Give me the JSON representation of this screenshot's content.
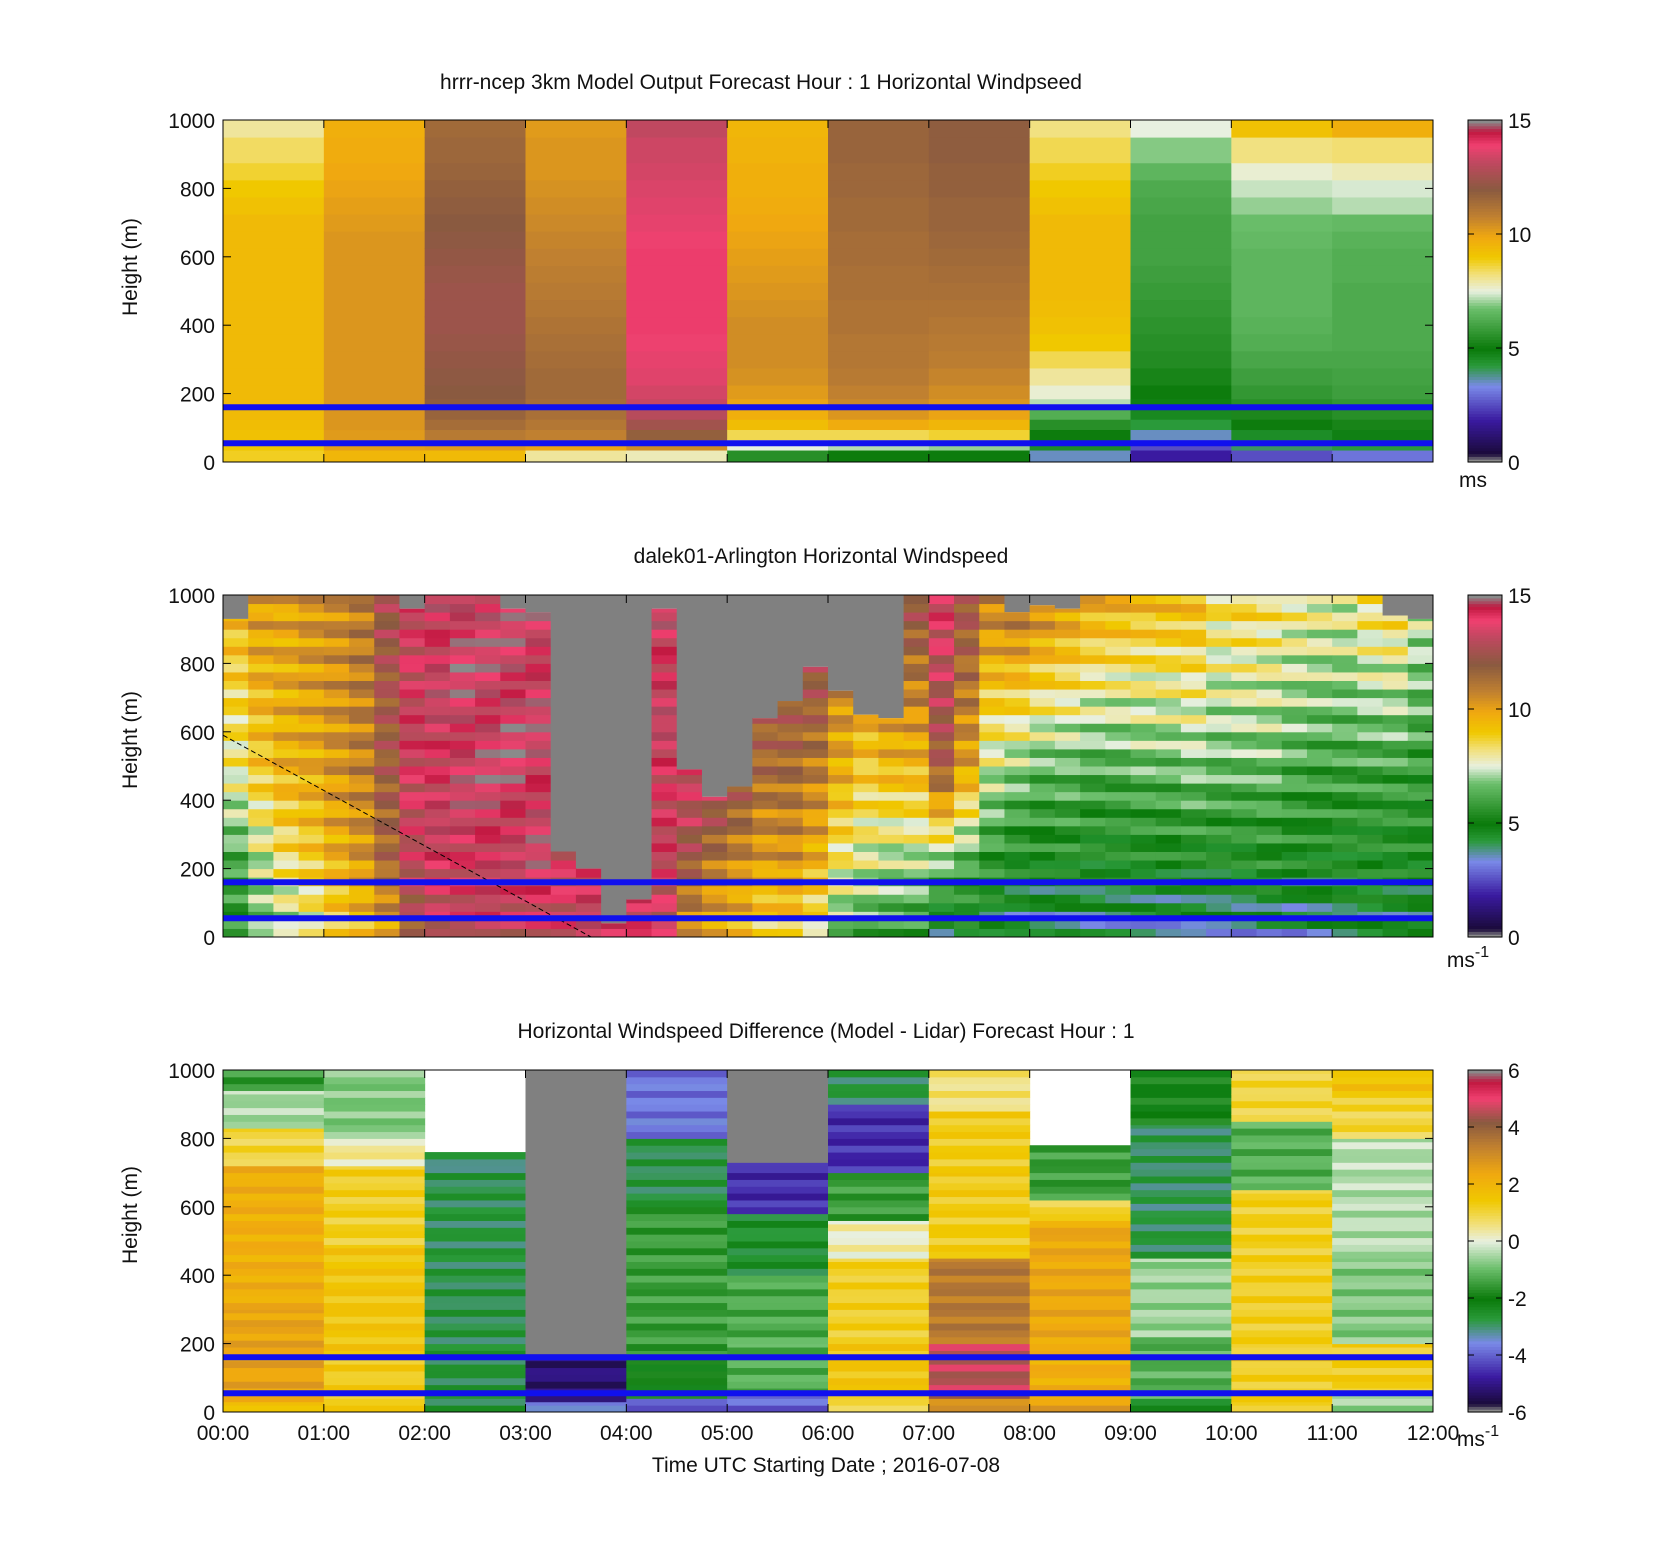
{
  "figure": {
    "xlabel": "Time UTC  Starting Date ; 2016-07-08",
    "xticks": [
      "00:00",
      "01:00",
      "02:00",
      "03:00",
      "04:00",
      "05:00",
      "06:00",
      "07:00",
      "08:00",
      "09:00",
      "10:00",
      "11:00",
      "12:00"
    ]
  },
  "colors": {
    "reference_line": "#1010ee",
    "missing": "#808080",
    "speed_scale": [
      [
        0.0,
        "#8a8a8a"
      ],
      [
        0.02,
        "#1a0a3a"
      ],
      [
        0.12,
        "#3a1aa0"
      ],
      [
        0.22,
        "#7a8ae8"
      ],
      [
        0.28,
        "#2a9a3a"
      ],
      [
        0.33,
        "#0a7a0a"
      ],
      [
        0.45,
        "#6cbf6c"
      ],
      [
        0.5,
        "#e8f0e0"
      ],
      [
        0.55,
        "#f2e07a"
      ],
      [
        0.6,
        "#f0c800"
      ],
      [
        0.66,
        "#f0a810"
      ],
      [
        0.72,
        "#c08030"
      ],
      [
        0.8,
        "#8a5a40"
      ],
      [
        0.88,
        "#c04860"
      ],
      [
        0.93,
        "#f04070"
      ],
      [
        0.97,
        "#c01840"
      ],
      [
        1.0,
        "#8a8a8a"
      ]
    ],
    "diff_scale": [
      [
        0.0,
        "#8a8a8a"
      ],
      [
        0.02,
        "#1a0a3a"
      ],
      [
        0.1,
        "#3a1aa0"
      ],
      [
        0.2,
        "#7a8ae8"
      ],
      [
        0.27,
        "#2a9a3a"
      ],
      [
        0.33,
        "#0a7a0a"
      ],
      [
        0.42,
        "#6cbf6c"
      ],
      [
        0.5,
        "#e8f0e0"
      ],
      [
        0.55,
        "#f2e07a"
      ],
      [
        0.62,
        "#f0c800"
      ],
      [
        0.7,
        "#f0a810"
      ],
      [
        0.78,
        "#c08030"
      ],
      [
        0.85,
        "#8a5a40"
      ],
      [
        0.92,
        "#f04070"
      ],
      [
        0.97,
        "#c01840"
      ],
      [
        1.0,
        "#8a8a8a"
      ]
    ]
  },
  "chart_data": [
    {
      "type": "heatmap",
      "title": "hrrr-ncep 3km Model Output   Forecast Hour : 1 Horizontal Windpseed",
      "xlabel": "",
      "ylabel": "Height (m)",
      "xlim": [
        0,
        12
      ],
      "ylim": [
        0,
        1000
      ],
      "yticks": [
        0,
        200,
        400,
        600,
        800,
        1000
      ],
      "colorbar": {
        "ticks": [
          0,
          5,
          10,
          15
        ],
        "unit": "ms",
        "range": [
          0,
          15
        ]
      },
      "reference_lines_m": [
        160,
        55
      ],
      "time_hours": [
        0,
        1,
        2,
        3,
        4,
        5,
        6,
        7,
        8,
        9,
        10,
        11
      ],
      "height_levels_m": [
        20,
        50,
        80,
        110,
        140,
        170,
        200,
        250,
        300,
        350,
        400,
        450,
        500,
        550,
        600,
        650,
        700,
        750,
        800,
        850,
        900,
        1000
      ],
      "windspeed_ms": [
        [
          8.8,
          9.0,
          9.2,
          9.3,
          9.4,
          9.4,
          9.4,
          9.4,
          9.4,
          9.4,
          9.4,
          9.4,
          9.4,
          9.4,
          9.4,
          9.4,
          9.4,
          9.2,
          9.0,
          8.7,
          8.4,
          8.0
        ],
        [
          9.5,
          10.1,
          10.2,
          10.3,
          10.3,
          10.3,
          10.3,
          10.3,
          10.3,
          10.3,
          10.3,
          10.3,
          10.3,
          10.3,
          10.3,
          10.3,
          10.2,
          10.1,
          10.0,
          9.9,
          9.8,
          9.7
        ],
        [
          9.4,
          10.2,
          11.0,
          11.4,
          11.7,
          11.9,
          12.0,
          12.1,
          12.2,
          12.3,
          12.4,
          12.4,
          12.4,
          12.3,
          12.2,
          12.1,
          12.0,
          11.9,
          11.8,
          11.7,
          11.6,
          11.5
        ],
        [
          8.0,
          10.0,
          10.8,
          11.1,
          11.3,
          11.4,
          11.5,
          11.5,
          11.4,
          11.3,
          11.2,
          11.1,
          11.0,
          10.9,
          10.8,
          10.7,
          10.6,
          10.5,
          10.4,
          10.3,
          10.3,
          10.2
        ],
        [
          7.8,
          10.5,
          11.8,
          12.5,
          13.0,
          13.3,
          13.5,
          13.7,
          13.8,
          13.9,
          14.0,
          14.0,
          14.0,
          14.0,
          14.0,
          13.9,
          13.8,
          13.7,
          13.6,
          13.5,
          13.4,
          13.2
        ],
        [
          5.5,
          7.5,
          8.5,
          9.3,
          9.7,
          10.0,
          10.2,
          10.4,
          10.5,
          10.5,
          10.5,
          10.4,
          10.3,
          10.2,
          10.1,
          10.0,
          9.9,
          9.8,
          9.7,
          9.7,
          9.6,
          9.5
        ],
        [
          5.0,
          7.2,
          8.5,
          9.8,
          10.3,
          10.6,
          10.8,
          11.0,
          11.1,
          11.1,
          11.2,
          11.2,
          11.3,
          11.3,
          11.4,
          11.4,
          11.5,
          11.5,
          11.6,
          11.6,
          11.7,
          11.7
        ],
        [
          5.0,
          7.0,
          8.7,
          9.5,
          10.0,
          10.3,
          10.5,
          10.7,
          10.9,
          11.0,
          11.1,
          11.2,
          11.3,
          11.4,
          11.5,
          11.6,
          11.7,
          11.7,
          11.8,
          11.8,
          11.9,
          11.9
        ],
        [
          3.5,
          4.5,
          5.0,
          5.5,
          6.3,
          7.2,
          7.6,
          8.0,
          8.5,
          9.0,
          9.2,
          9.3,
          9.4,
          9.4,
          9.4,
          9.4,
          9.4,
          9.2,
          9.0,
          8.8,
          8.5,
          8.2
        ],
        [
          1.8,
          2.5,
          3.5,
          4.2,
          4.6,
          4.8,
          5.0,
          5.2,
          5.4,
          5.5,
          5.6,
          5.7,
          5.8,
          5.9,
          6.0,
          6.0,
          6.0,
          6.1,
          6.2,
          6.5,
          6.9,
          7.5
        ],
        [
          2.5,
          4.0,
          4.5,
          5.0,
          5.3,
          5.5,
          5.7,
          5.9,
          6.1,
          6.3,
          6.4,
          6.5,
          6.5,
          6.5,
          6.5,
          6.6,
          6.7,
          7.0,
          7.3,
          7.6,
          8.2,
          9.2
        ],
        [
          3.0,
          4.2,
          4.8,
          5.2,
          5.5,
          5.7,
          5.9,
          6.0,
          6.1,
          6.2,
          6.2,
          6.2,
          6.2,
          6.3,
          6.3,
          6.4,
          6.6,
          7.2,
          7.4,
          7.8,
          8.3,
          9.7
        ]
      ]
    },
    {
      "type": "heatmap",
      "title": "dalek01-Arlington  Horizontal Windspeed",
      "xlabel": "",
      "ylabel": "Height (m)",
      "xlim": [
        0,
        12
      ],
      "ylim": [
        0,
        1000
      ],
      "yticks": [
        0,
        200,
        400,
        600,
        800,
        1000
      ],
      "colorbar": {
        "ticks": [
          0,
          5,
          10,
          15
        ],
        "unit": "ms-1",
        "unit_base": "ms",
        "unit_exp": "-1",
        "range": [
          0,
          15
        ]
      },
      "reference_lines_m": [
        160,
        55
      ],
      "dashed_line": {
        "x_hours": [
          0,
          3.65
        ],
        "y_m": [
          590,
          0
        ]
      },
      "time_hours": [
        0,
        0.25,
        0.5,
        0.75,
        1,
        1.25,
        1.5,
        1.75,
        2,
        2.25,
        2.5,
        2.75,
        3,
        3.25,
        3.5,
        3.75,
        4,
        4.25,
        4.5,
        4.75,
        5,
        5.25,
        5.5,
        5.75,
        6,
        6.25,
        6.5,
        6.75,
        7,
        7.25,
        7.5,
        7.75,
        8,
        8.25,
        8.5,
        8.75,
        9,
        9.25,
        9.5,
        9.75,
        10,
        10.25,
        10.5,
        10.75,
        11,
        11.25,
        11.5,
        11.75
      ],
      "top_of_valid_data_m": [
        930,
        1000,
        1000,
        1000,
        1000,
        1000,
        1000,
        960,
        1000,
        1000,
        1000,
        960,
        950,
        250,
        200,
        40,
        110,
        960,
        490,
        410,
        440,
        640,
        690,
        790,
        720,
        650,
        640,
        1000,
        1000,
        1000,
        1000,
        950,
        970,
        960,
        1000,
        1000,
        1000,
        1000,
        1000,
        1000,
        1000,
        1000,
        1000,
        1000,
        1000,
        1000,
        940,
        930
      ],
      "windspeed_profile_ms": [
        [
          5.5,
          6.0,
          8.0,
          9.5
        ],
        [
          6.5,
          7.2,
          9.0,
          10.2
        ],
        [
          7.0,
          8.2,
          9.6,
          10.0
        ],
        [
          7.5,
          8.8,
          9.8,
          10.4
        ],
        [
          8.5,
          9.6,
          10.3,
          10.6
        ],
        [
          9.0,
          10.2,
          10.8,
          11.0
        ],
        [
          9.8,
          11.5,
          12.0,
          12.5
        ],
        [
          12.0,
          13.2,
          13.6,
          13.5
        ],
        [
          13.0,
          13.8,
          13.8,
          14.0
        ],
        [
          13.2,
          13.8,
          14.0,
          14.2
        ],
        [
          13.4,
          13.9,
          14.1,
          14.0
        ],
        [
          13.2,
          13.8,
          14.2,
          14.0
        ],
        [
          13.5,
          14.0,
          14.0,
          14.0
        ],
        [
          13.5,
          13.5,
          13.5,
          13.5
        ],
        [
          13.8,
          13.8,
          13.8,
          13.8
        ],
        [
          13.8,
          13.8,
          13.8,
          13.8
        ],
        [
          13.8,
          13.8,
          13.8,
          13.8
        ],
        [
          13.2,
          13.5,
          13.8,
          14.0
        ],
        [
          10.0,
          12.0,
          13.8,
          14.2
        ],
        [
          9.5,
          11.0,
          13.5,
          13.8
        ],
        [
          9.2,
          10.5,
          12.5,
          13.8
        ],
        [
          8.5,
          10.0,
          11.5,
          13.0
        ],
        [
          8.8,
          10.2,
          11.5,
          13.0
        ],
        [
          8.0,
          9.5,
          11.0,
          13.5
        ],
        [
          6.5,
          8.0,
          9.8,
          11.5
        ],
        [
          6.0,
          7.5,
          9.0,
          11.5
        ],
        [
          6.0,
          7.0,
          9.5,
          11.5
        ],
        [
          5.8,
          7.0,
          9.5,
          12.5
        ],
        [
          4.0,
          6.5,
          12.0,
          14.0
        ],
        [
          4.5,
          6.0,
          10.0,
          12.5
        ],
        [
          4.0,
          5.5,
          7.5,
          11.0
        ],
        [
          3.8,
          5.0,
          7.0,
          11.5
        ],
        [
          3.5,
          5.0,
          6.5,
          11.0
        ],
        [
          3.6,
          5.2,
          6.5,
          10.5
        ],
        [
          3.5,
          5.0,
          6.2,
          10.0
        ],
        [
          3.5,
          5.0,
          6.2,
          9.8
        ],
        [
          3.5,
          5.0,
          6.5,
          9.5
        ],
        [
          3.5,
          5.0,
          6.5,
          9.5
        ],
        [
          3.8,
          5.0,
          6.8,
          9.5
        ],
        [
          3.6,
          5.0,
          6.5,
          8.5
        ],
        [
          3.5,
          5.0,
          6.5,
          8.8
        ],
        [
          3.8,
          5.2,
          6.6,
          8.5
        ],
        [
          3.5,
          5.0,
          6.2,
          8.2
        ],
        [
          3.8,
          5.0,
          6.0,
          8.0
        ],
        [
          4.0,
          5.0,
          6.0,
          7.8
        ],
        [
          4.0,
          5.0,
          6.0,
          8.5
        ],
        [
          4.0,
          5.0,
          6.0,
          8.8
        ],
        [
          4.2,
          5.0,
          5.8,
          7.5
        ]
      ],
      "profile_heights_m": [
        0,
        200,
        500,
        1000
      ]
    },
    {
      "type": "heatmap",
      "title": "Horizontal Windspeed Difference (Model - Lidar) Forecast Hour : 1",
      "xlabel": "Time UTC  Starting Date ; 2016-07-08",
      "ylabel": "Height (m)",
      "xlim": [
        0,
        12
      ],
      "ylim": [
        0,
        1000
      ],
      "yticks": [
        0,
        200,
        400,
        600,
        800,
        1000
      ],
      "colorbar": {
        "ticks": [
          -6,
          -4,
          -2,
          0,
          2,
          4,
          6
        ],
        "unit": "ms-1",
        "unit_base": "ms",
        "unit_exp": "-1",
        "range": [
          -6,
          6
        ]
      },
      "reference_lines_m": [
        160,
        55
      ],
      "time_hours": [
        0,
        1,
        2,
        3,
        4,
        5,
        6,
        7,
        8,
        9,
        10,
        11
      ],
      "segments": [
        [
          [
            0,
            30,
            1.5
          ],
          [
            30,
            300,
            2.5
          ],
          [
            300,
            720,
            2.2
          ],
          [
            720,
            830,
            1.0
          ],
          [
            830,
            940,
            -0.5
          ],
          [
            940,
            1000,
            -1.5
          ]
        ],
        [
          [
            0,
            160,
            1.3
          ],
          [
            160,
            490,
            1.5
          ],
          [
            490,
            720,
            1.2
          ],
          [
            720,
            800,
            0.4
          ],
          [
            800,
            1000,
            -0.8
          ]
        ],
        [
          [
            0,
            180,
            -2.7
          ],
          [
            180,
            700,
            -2.8
          ],
          [
            700,
            760,
            -3.0
          ]
        ],
        [
          [
            0,
            30,
            -3.5
          ],
          [
            30,
            170,
            -5.2
          ],
          [
            170,
            260,
            -9
          ],
          [
            260,
            580,
            -9
          ],
          [
            580,
            650,
            -9
          ],
          [
            650,
            900,
            -9
          ],
          [
            900,
            1000,
            -9
          ]
        ],
        [
          [
            0,
            40,
            -4.0
          ],
          [
            40,
            160,
            -2.0
          ],
          [
            160,
            600,
            -1.5
          ],
          [
            600,
            800,
            -2.8
          ],
          [
            800,
            1000,
            -3.8
          ]
        ],
        [
          [
            0,
            50,
            -4.0
          ],
          [
            50,
            200,
            -1.2
          ],
          [
            200,
            400,
            -1.3
          ],
          [
            400,
            580,
            -2.6
          ],
          [
            580,
            730,
            -4.6
          ],
          [
            730,
            1000,
            -9
          ]
        ],
        [
          [
            0,
            40,
            0.8
          ],
          [
            40,
            200,
            1.5
          ],
          [
            200,
            450,
            1.2
          ],
          [
            450,
            560,
            0.2
          ],
          [
            560,
            700,
            -1.5
          ],
          [
            700,
            900,
            -4.6
          ],
          [
            900,
            1000,
            -2.8
          ]
        ],
        [
          [
            0,
            40,
            2.8
          ],
          [
            40,
            200,
            4.6
          ],
          [
            200,
            450,
            3.5
          ],
          [
            450,
            700,
            1.3
          ],
          [
            700,
            880,
            1.3
          ],
          [
            880,
            1000,
            0.6
          ]
        ],
        [
          [
            0,
            40,
            2.6
          ],
          [
            40,
            200,
            2.2
          ],
          [
            200,
            560,
            2.4
          ],
          [
            560,
            620,
            1.1
          ],
          [
            620,
            780,
            -1.5
          ]
        ],
        [
          [
            0,
            40,
            -2.3
          ],
          [
            40,
            220,
            -1.2
          ],
          [
            220,
            450,
            -0.6
          ],
          [
            450,
            550,
            -2.8
          ],
          [
            550,
            840,
            -2.9
          ],
          [
            840,
            1000,
            -2.0
          ]
        ],
        [
          [
            0,
            30,
            1.3
          ],
          [
            30,
            200,
            1.2
          ],
          [
            200,
            650,
            1.2
          ],
          [
            650,
            850,
            -1.2
          ],
          [
            850,
            1000,
            1.0
          ]
        ],
        [
          [
            0,
            50,
            -0.6
          ],
          [
            50,
            200,
            1.3
          ],
          [
            200,
            450,
            -0.8
          ],
          [
            450,
            800,
            -0.4
          ],
          [
            800,
            920,
            1.0
          ],
          [
            920,
            1000,
            1.6
          ]
        ]
      ]
    }
  ]
}
